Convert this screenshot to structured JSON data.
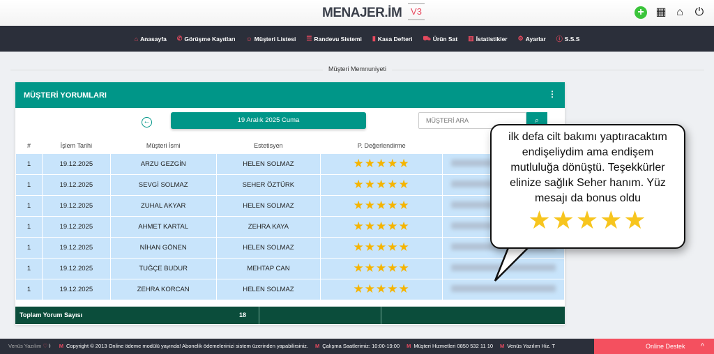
{
  "header": {
    "logo": "MENAJER.İM",
    "version": "V3",
    "icons": [
      "plus-circle-icon",
      "grid-icon",
      "home-search-icon",
      "power-icon"
    ]
  },
  "nav": [
    {
      "label": "Anasayfa",
      "icon": "⌂"
    },
    {
      "label": "Görüşme Kayıtları",
      "icon": "✆"
    },
    {
      "label": "Müşteri Listesi",
      "icon": "☺"
    },
    {
      "label": "Randevu Sistemi",
      "icon": "☰"
    },
    {
      "label": "Kasa Defteri",
      "icon": "▮"
    },
    {
      "label": "Ürün Sat",
      "icon": "⛟"
    },
    {
      "label": "İstatistikler",
      "icon": "▥"
    },
    {
      "label": "Ayarlar",
      "icon": "⚙"
    },
    {
      "label": "S.S.S",
      "icon": "ⓘ"
    }
  ],
  "section_title": "Müşteri Memnuniyeti",
  "card": {
    "title": "MÜŞTERİ YORUMLARI",
    "date": "19 Aralık 2025 Cuma",
    "search_placeholder": "MÜŞTERİ ARA",
    "columns": [
      "#",
      "İşlem Tarihi",
      "Müşteri İsmi",
      "Estetisyen",
      "P. Değerlendirme",
      "Yorum"
    ],
    "rows": [
      {
        "no": "1",
        "date": "19.12.2025",
        "customer": "ARZU GEZGİN",
        "staff": "HELEN SOLMAZ",
        "rating": 5
      },
      {
        "no": "1",
        "date": "19.12.2025",
        "customer": "SEVGİ SOLMAZ",
        "staff": "SEHER ÖZTÜRK",
        "rating": 5
      },
      {
        "no": "1",
        "date": "19.12.2025",
        "customer": "ZUHAL AKYAR",
        "staff": "HELEN SOLMAZ",
        "rating": 5
      },
      {
        "no": "1",
        "date": "19.12.2025",
        "customer": "AHMET KARTAL",
        "staff": "ZEHRA KAYA",
        "rating": 5
      },
      {
        "no": "1",
        "date": "19.12.2025",
        "customer": "NİHAN GÖNEN",
        "staff": "HELEN SOLMAZ",
        "rating": 5
      },
      {
        "no": "1",
        "date": "19.12.2025",
        "customer": "TUĞÇE BUDUR",
        "staff": "MEHTAP CAN",
        "rating": 5
      },
      {
        "no": "1",
        "date": "19.12.2025",
        "customer": "ZEHRA KORCAN",
        "staff": "HELEN SOLMAZ",
        "rating": 5
      }
    ],
    "total_label": "Toplam Yorum Sayısı",
    "total_value": "18"
  },
  "bubble": {
    "text": "ilk defa cilt bakımı yaptıracaktım endişeliydim ama endişem mutluluğa dönüştü. Teşekkürler elinize sağlık Seher hanım. Yüz mesajı da bonus oldu",
    "rating": 5
  },
  "footer": {
    "brand": "Venüs Yazılım",
    "items": [
      "Copyright © 2013 Online ödeme modülü yayında! Abonelik ödemelerinizi sistem üzerinden yapabilirsiniz.",
      "Çalışma Saatlerimiz: 10:00-19:00",
      "Müşteri Hizmetleri 0850 532 11 10",
      "Venüs Yazılım Hiz. T"
    ],
    "support": "Online Destek"
  },
  "colors": {
    "accent": "#009688",
    "nav": "#2b2f3a",
    "brand": "#e84a5f",
    "row": "#c8e4fb",
    "total": "#0b4d3b",
    "star": "#f5b400"
  }
}
